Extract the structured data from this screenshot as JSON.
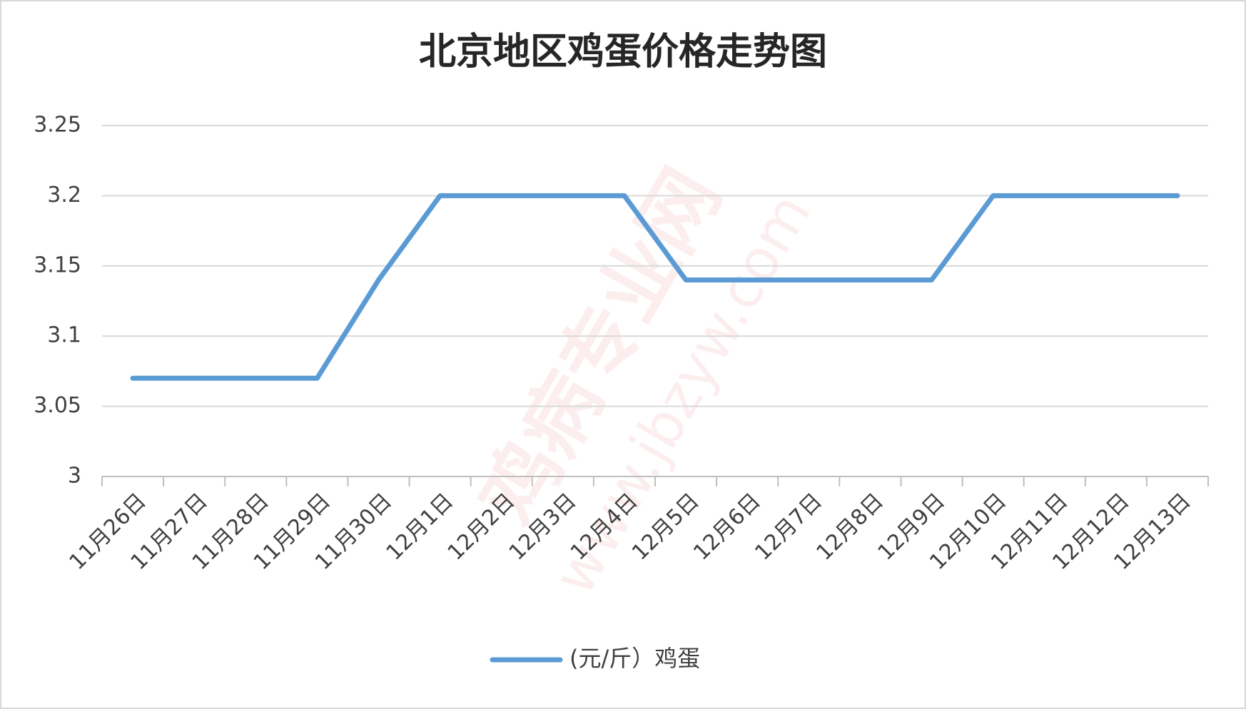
{
  "chart_data": {
    "type": "line",
    "title": "北京地区鸡蛋价格走势图",
    "categories": [
      "11月26日",
      "11月27日",
      "11月28日",
      "11月29日",
      "11月30日",
      "12月1日",
      "12月2日",
      "12月3日",
      "12月4日",
      "12月5日",
      "12月6日",
      "12月7日",
      "12月8日",
      "12月9日",
      "12月10日",
      "12月11日",
      "12月12日",
      "12月13日"
    ],
    "series": [
      {
        "name": "(元/斤）鸡蛋",
        "color": "#5b9bd5",
        "values": [
          3.07,
          3.07,
          3.07,
          3.07,
          3.14,
          3.2,
          3.2,
          3.2,
          3.2,
          3.14,
          3.14,
          3.14,
          3.14,
          3.14,
          3.2,
          3.2,
          3.2,
          3.2
        ]
      }
    ],
    "ylim": [
      3,
      3.25
    ],
    "yticks": [
      3,
      3.05,
      3.1,
      3.15,
      3.2,
      3.25
    ],
    "grid": true,
    "legend": "bottom"
  },
  "watermark": {
    "brand": "鸡病专业网",
    "url": "www.jbzyw.com"
  }
}
